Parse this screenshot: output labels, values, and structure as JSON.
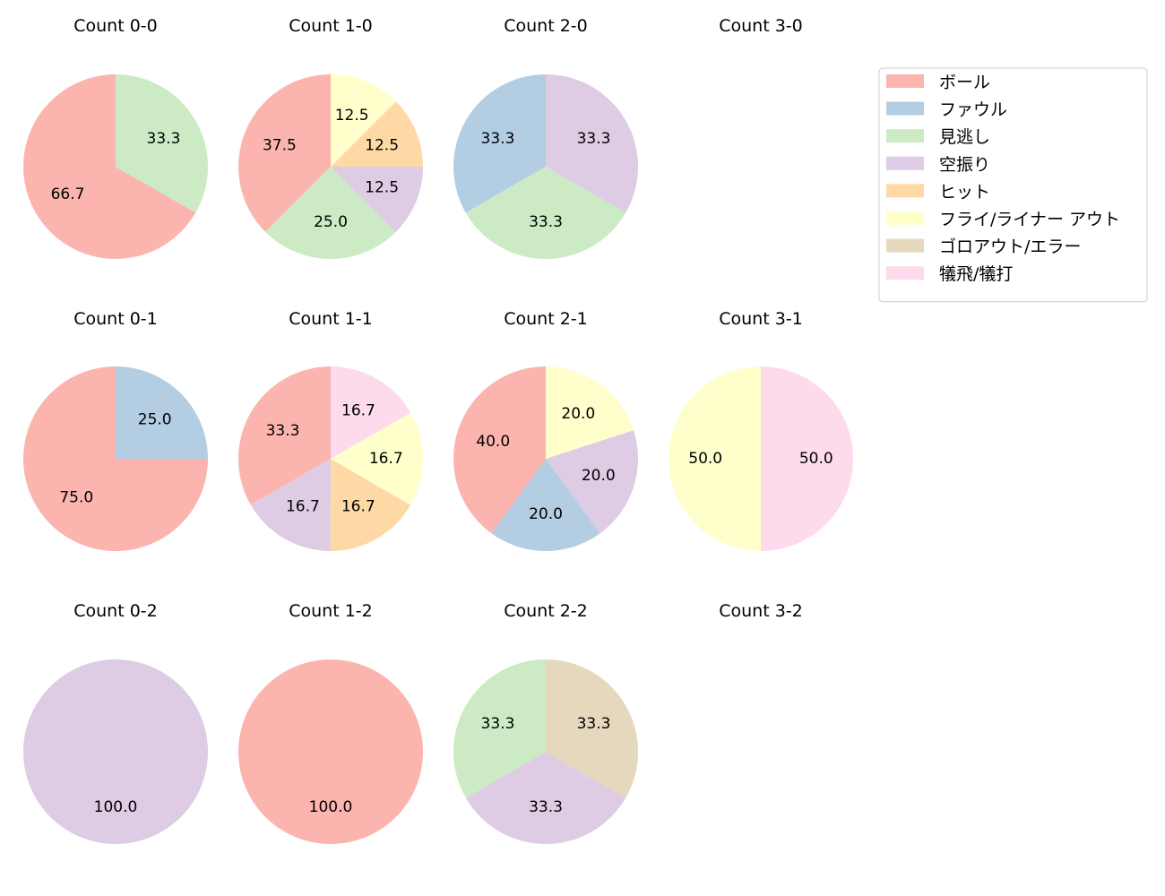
{
  "chart_data": {
    "type": "pie",
    "categories": [
      "ボール",
      "ファウル",
      "見逃し",
      "空振り",
      "ヒット",
      "フライ/ライナー アウト",
      "ゴロアウト/エラー",
      "犠飛/犠打"
    ],
    "colors": [
      "#fbb4ae",
      "#b3cde3",
      "#ccebc5",
      "#decbe4",
      "#fed9a6",
      "#ffffcc",
      "#e5d8bd",
      "#fddaec"
    ],
    "legend_placement": "right",
    "subplots": [
      {
        "title": "Count 0-0",
        "values": [
          {
            "category": "ボール",
            "pct": 66.7
          },
          {
            "category": "見逃し",
            "pct": 33.3
          }
        ]
      },
      {
        "title": "Count 1-0",
        "values": [
          {
            "category": "ボール",
            "pct": 37.5
          },
          {
            "category": "見逃し",
            "pct": 25.0
          },
          {
            "category": "空振り",
            "pct": 12.5
          },
          {
            "category": "ヒット",
            "pct": 12.5
          },
          {
            "category": "フライ/ライナー アウト",
            "pct": 12.5
          }
        ]
      },
      {
        "title": "Count 2-0",
        "values": [
          {
            "category": "ファウル",
            "pct": 33.3
          },
          {
            "category": "見逃し",
            "pct": 33.3
          },
          {
            "category": "空振り",
            "pct": 33.3
          }
        ]
      },
      {
        "title": "Count 3-0",
        "values": []
      },
      {
        "title": "Count 0-1",
        "values": [
          {
            "category": "ボール",
            "pct": 75.0
          },
          {
            "category": "ファウル",
            "pct": 25.0
          }
        ]
      },
      {
        "title": "Count 1-1",
        "values": [
          {
            "category": "ボール",
            "pct": 33.3
          },
          {
            "category": "空振り",
            "pct": 16.7
          },
          {
            "category": "ヒット",
            "pct": 16.7
          },
          {
            "category": "フライ/ライナー アウト",
            "pct": 16.7
          },
          {
            "category": "犠飛/犠打",
            "pct": 16.7
          }
        ]
      },
      {
        "title": "Count 2-1",
        "values": [
          {
            "category": "ボール",
            "pct": 40.0
          },
          {
            "category": "ファウル",
            "pct": 20.0
          },
          {
            "category": "空振り",
            "pct": 20.0
          },
          {
            "category": "フライ/ライナー アウト",
            "pct": 20.0
          }
        ]
      },
      {
        "title": "Count 3-1",
        "values": [
          {
            "category": "フライ/ライナー アウト",
            "pct": 50.0
          },
          {
            "category": "犠飛/犠打",
            "pct": 50.0
          }
        ]
      },
      {
        "title": "Count 0-2",
        "values": [
          {
            "category": "空振り",
            "pct": 100.0
          }
        ]
      },
      {
        "title": "Count 1-2",
        "values": [
          {
            "category": "ボール",
            "pct": 100.0
          }
        ]
      },
      {
        "title": "Count 2-2",
        "values": [
          {
            "category": "見逃し",
            "pct": 33.3
          },
          {
            "category": "空振り",
            "pct": 33.3
          },
          {
            "category": "ゴロアウト/エラー",
            "pct": 33.3
          }
        ]
      },
      {
        "title": "Count 3-2",
        "values": []
      }
    ]
  }
}
